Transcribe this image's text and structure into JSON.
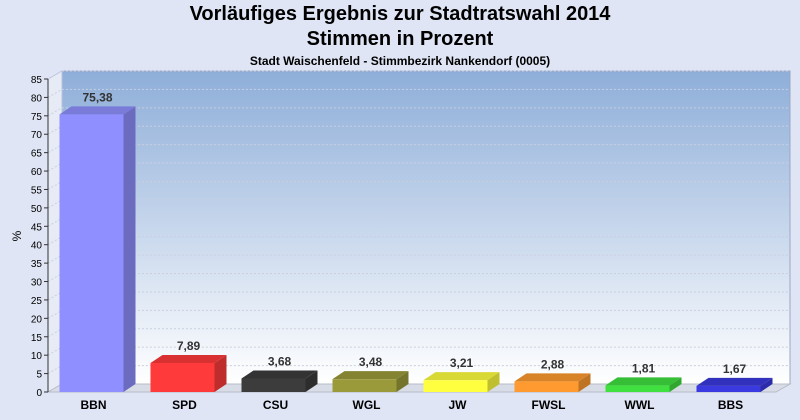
{
  "chart_data": {
    "type": "bar",
    "title": "Vorläufiges Ergebnis zur Stadtratswahl 2014",
    "subtitle_line": "Stimmen in Prozent",
    "caption": "Stadt Waischenfeld - Stimmbezirk Nankendorf (0005)",
    "ylabel": "%",
    "xlabel": "",
    "ylim": [
      0,
      85
    ],
    "yticks": [
      "0",
      "5",
      "10",
      "15",
      "20",
      "25",
      "30",
      "35",
      "40",
      "45",
      "50",
      "55",
      "60",
      "65",
      "70",
      "75",
      "80",
      "85"
    ],
    "grid": true,
    "categories": [
      "BBN",
      "SPD",
      "CSU",
      "WGL",
      "JW",
      "FWSL",
      "WWL",
      "BBS"
    ],
    "values": [
      75.38,
      7.89,
      3.68,
      3.48,
      3.21,
      2.88,
      1.81,
      1.67
    ],
    "value_labels": [
      "75,38",
      "7,89",
      "3,68",
      "3,48",
      "3,21",
      "2,88",
      "1,81",
      "1,67"
    ],
    "colors": [
      "#8f8fff",
      "#ff3a3a",
      "#3c3c3c",
      "#9a9a3a",
      "#ffff40",
      "#ff9a30",
      "#40e040",
      "#3a3ae0"
    ]
  }
}
